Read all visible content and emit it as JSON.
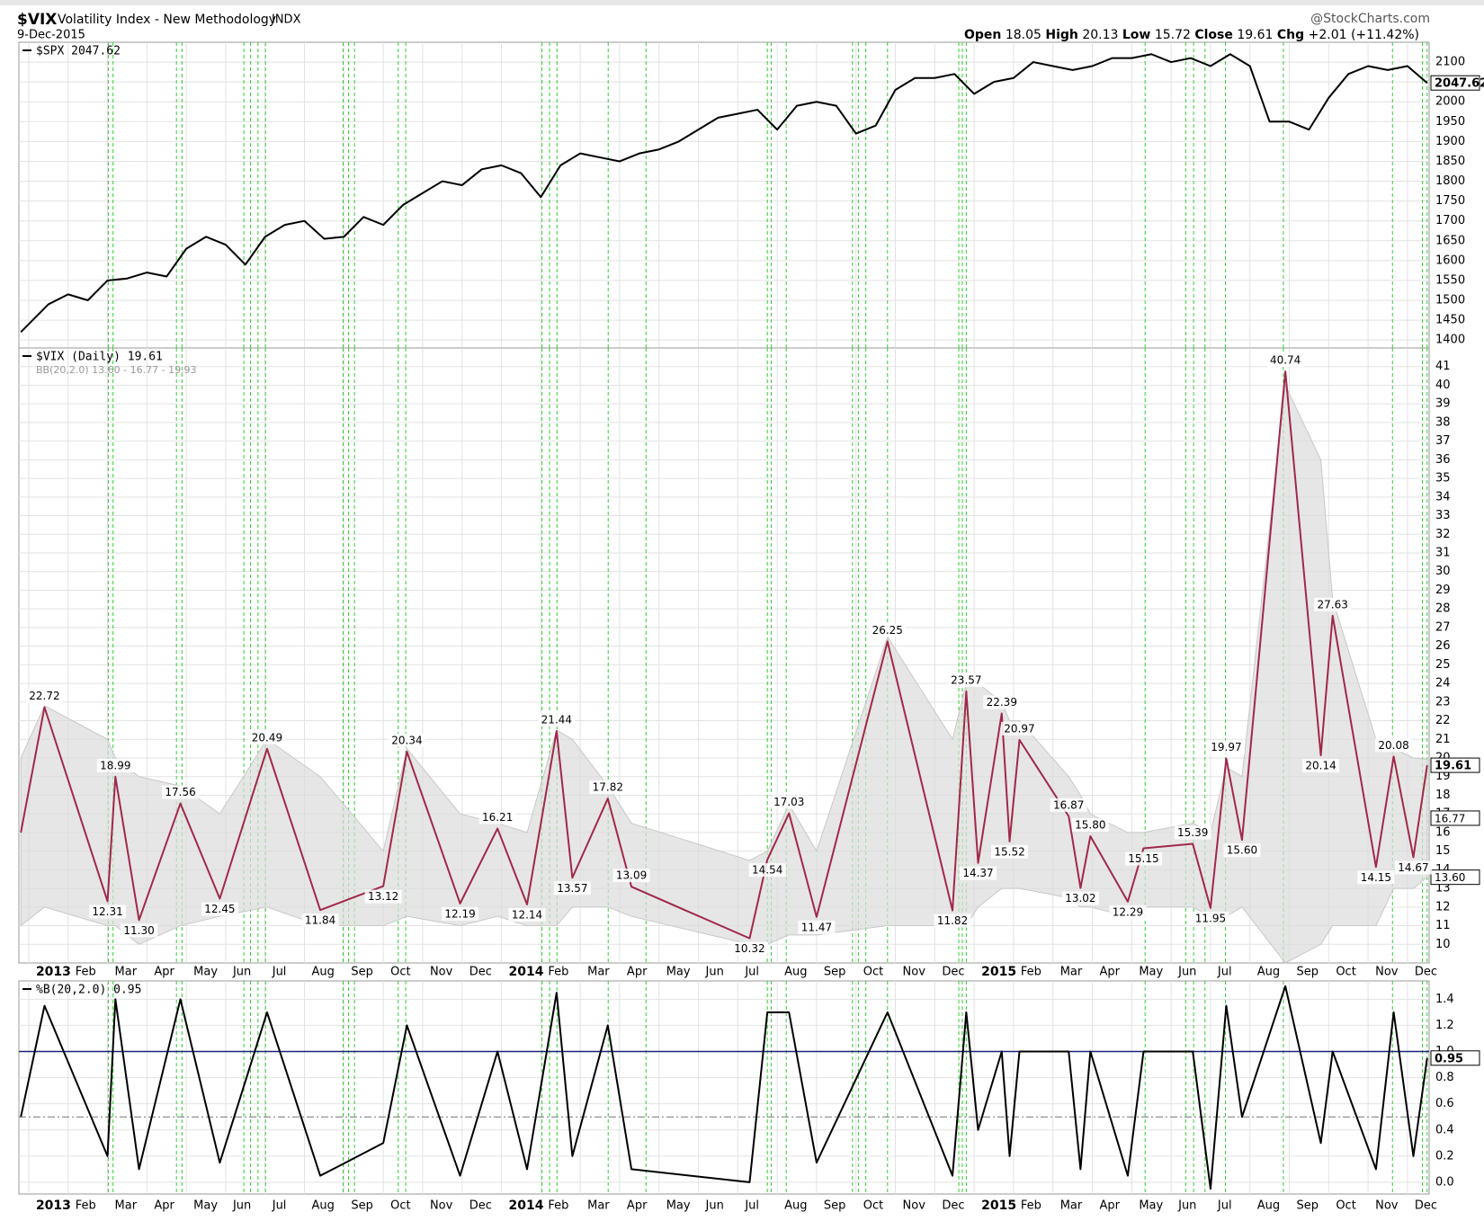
{
  "header": {
    "symbol": "$VIX",
    "name": "Volatility Index - New Methodology",
    "exchange": "INDX",
    "date": "9-Dec-2015",
    "source": "@StockCharts.com",
    "ohlc": [
      "Open",
      "18.05",
      "High",
      "20.13",
      "Low",
      "15.72",
      "Close",
      "19.61",
      "Chg",
      "+2.01 (+11.42%)"
    ]
  },
  "chart_data": [
    {
      "type": "line",
      "legend": "$SPX 2047.62",
      "color": "#000000",
      "xlim": [
        -0.25,
        35.55
      ],
      "x": [
        -0.2,
        0.5,
        1,
        1.5,
        2,
        2.5,
        3,
        3.5,
        4,
        4.5,
        5,
        5.5,
        6,
        6.5,
        7,
        7.5,
        8,
        8.5,
        9,
        9.5,
        10,
        10.5,
        11,
        11.5,
        12,
        12.5,
        13,
        13.5,
        14,
        14.5,
        15,
        15.5,
        16,
        16.5,
        17,
        17.5,
        18,
        18.5,
        19,
        19.5,
        20,
        20.5,
        21,
        21.5,
        22,
        22.5,
        23,
        23.5,
        24,
        24.5,
        25,
        25.5,
        26,
        26.5,
        27,
        27.5,
        28,
        28.5,
        29,
        29.5,
        30,
        30.5,
        31,
        31.5,
        32,
        32.5,
        33,
        33.5,
        34,
        34.5,
        35,
        35.5
      ],
      "values": [
        1420,
        1490,
        1515,
        1500,
        1550,
        1555,
        1570,
        1560,
        1630,
        1660,
        1640,
        1590,
        1660,
        1690,
        1700,
        1655,
        1660,
        1710,
        1690,
        1740,
        1770,
        1800,
        1790,
        1830,
        1840,
        1820,
        1760,
        1840,
        1870,
        1860,
        1850,
        1870,
        1880,
        1900,
        1930,
        1960,
        1970,
        1980,
        1930,
        1990,
        2000,
        1990,
        1920,
        1940,
        2030,
        2060,
        2060,
        2070,
        2020,
        2050,
        2060,
        2100,
        2090,
        2080,
        2090,
        2110,
        2110,
        2120,
        2100,
        2110,
        2090,
        2120,
        2090,
        1950,
        1950,
        1930,
        2010,
        2070,
        2090,
        2080,
        2090,
        2047.62
      ],
      "ylim": [
        1380,
        2150
      ],
      "yticks": [
        1400,
        1450,
        1500,
        1550,
        1600,
        1650,
        1700,
        1750,
        1800,
        1850,
        1900,
        1950,
        2000,
        2050,
        2100
      ],
      "grid": true
    },
    {
      "type": "line",
      "legend": "$VIX (Daily) 19.61",
      "band_legend": "BB(20,2.0) 13.60 - 16.77 - 19.93",
      "color": "#a0284a",
      "band_color": "#dcdcdc",
      "xlim": [
        -0.25,
        35.55
      ],
      "xticks": [
        {
          "value": 0,
          "label": "2013"
        },
        {
          "value": 1,
          "label": "Feb"
        },
        {
          "value": 2,
          "label": "Mar"
        },
        {
          "value": 3,
          "label": "Apr"
        },
        {
          "value": 4,
          "label": "May"
        },
        {
          "value": 5,
          "label": "Jun"
        },
        {
          "value": 6,
          "label": "Jul"
        },
        {
          "value": 7,
          "label": "Aug"
        },
        {
          "value": 8,
          "label": "Sep"
        },
        {
          "value": 9,
          "label": "Oct"
        },
        {
          "value": 10,
          "label": "Nov"
        },
        {
          "value": 11,
          "label": "Dec"
        },
        {
          "value": 12,
          "label": "2014"
        },
        {
          "value": 13,
          "label": "Feb"
        },
        {
          "value": 14,
          "label": "Mar"
        },
        {
          "value": 15,
          "label": "Apr"
        },
        {
          "value": 16,
          "label": "May"
        },
        {
          "value": 17,
          "label": "Jun"
        },
        {
          "value": 18,
          "label": "Jul"
        },
        {
          "value": 19,
          "label": "Aug"
        },
        {
          "value": 20,
          "label": "Sep"
        },
        {
          "value": 21,
          "label": "Oct"
        },
        {
          "value": 22,
          "label": "Nov"
        },
        {
          "value": 23,
          "label": "Dec"
        },
        {
          "value": 24,
          "label": "2015"
        },
        {
          "value": 25,
          "label": "Feb"
        },
        {
          "value": 26,
          "label": "Mar"
        },
        {
          "value": 27,
          "label": "Apr"
        },
        {
          "value": 28,
          "label": "May"
        },
        {
          "value": 29,
          "label": "Jun"
        },
        {
          "value": 30,
          "label": "Jul"
        },
        {
          "value": 31,
          "label": "Aug"
        },
        {
          "value": 32,
          "label": "Sep"
        },
        {
          "value": 33,
          "label": "Oct"
        },
        {
          "value": 34,
          "label": "Nov"
        },
        {
          "value": 35,
          "label": "Dec"
        }
      ],
      "x": [
        -0.2,
        0.4,
        2.0,
        2.2,
        2.8,
        3.85,
        4.85,
        6.05,
        7.4,
        9.0,
        9.6,
        10.95,
        11.9,
        12.65,
        13.4,
        13.8,
        14.7,
        15.3,
        18.3,
        18.75,
        19.3,
        20.0,
        21.8,
        23.45,
        23.8,
        24.1,
        24.7,
        24.9,
        25.15,
        26.4,
        26.7,
        26.95,
        27.9,
        28.3,
        29.55,
        30.0,
        30.4,
        30.8,
        31.9,
        32.8,
        33.1,
        34.2,
        34.65,
        35.15,
        35.5
      ],
      "values": [
        16,
        22.72,
        12.31,
        18.99,
        11.3,
        17.56,
        12.45,
        20.49,
        11.84,
        13.12,
        20.34,
        12.19,
        16.21,
        12.14,
        21.44,
        13.57,
        17.82,
        13.09,
        10.32,
        14.54,
        17.03,
        11.47,
        26.25,
        11.82,
        23.57,
        14.37,
        22.39,
        15.52,
        20.97,
        16.87,
        13.02,
        15.8,
        12.29,
        15.15,
        15.39,
        11.95,
        19.97,
        15.6,
        40.74,
        20.14,
        27.63,
        14.15,
        20.08,
        14.67,
        19.61
      ],
      "value_labels": [
        null,
        "22.72",
        "12.31",
        "18.99",
        "11.30",
        "17.56",
        "12.45",
        "20.49",
        "11.84",
        "13.12",
        "20.34",
        "12.19",
        "16.21",
        "12.14",
        "21.44",
        "13.57",
        "17.82",
        "13.09",
        "10.32",
        "14.54",
        "17.03",
        "11.47",
        "26.25",
        "11.82",
        "23.57",
        "14.37",
        "22.39",
        "15.52",
        "20.97",
        "16.87",
        "13.02",
        "15.80",
        "12.29",
        "15.15",
        "15.39",
        "11.95",
        "19.97",
        "15.60",
        "40.74",
        "20.14",
        "27.63",
        "14.15",
        "20.08",
        "14.67",
        "19.61"
      ],
      "upper": [
        20,
        22.8,
        21,
        20,
        19,
        18.5,
        17,
        21,
        19,
        15,
        20.5,
        17,
        16.5,
        16,
        21.5,
        21,
        18.5,
        16.5,
        14.5,
        15,
        17.5,
        15,
        26.5,
        21,
        24,
        24,
        23,
        22,
        22,
        19,
        18,
        17,
        16,
        16,
        16.5,
        16,
        19.5,
        19,
        40,
        36,
        28.5,
        21,
        20.5,
        20,
        19.93
      ],
      "lower": [
        11,
        12,
        11,
        11,
        10,
        11,
        11.5,
        12,
        11,
        11,
        11.5,
        11,
        11.5,
        11,
        11,
        12,
        12,
        11.5,
        10,
        10,
        10.5,
        10.5,
        11,
        11,
        11,
        12,
        13,
        13,
        13,
        12.5,
        12,
        12,
        11.5,
        12,
        12,
        11.5,
        11.5,
        12,
        9,
        10,
        11,
        11,
        13,
        13,
        13.6
      ],
      "axis_labels": [
        {
          "value": 16.77,
          "label": "16.77"
        },
        {
          "value": 13.6,
          "label": "13.60"
        }
      ],
      "ylim": [
        9,
        42
      ],
      "yticks": [
        10,
        11,
        12,
        13,
        14,
        15,
        16,
        17,
        18,
        19,
        20,
        21,
        22,
        23,
        24,
        25,
        26,
        27,
        28,
        29,
        30,
        31,
        32,
        33,
        34,
        35,
        36,
        37,
        38,
        39,
        40,
        41
      ],
      "grid": true
    },
    {
      "type": "line",
      "legend": "%B(20,2.0) 0.95",
      "color": "#000000",
      "xlim": [
        -0.25,
        35.55
      ],
      "xticks": [
        {
          "value": 0,
          "label": "2013"
        },
        {
          "value": 1,
          "label": "Feb"
        },
        {
          "value": 2,
          "label": "Mar"
        },
        {
          "value": 3,
          "label": "Apr"
        },
        {
          "value": 4,
          "label": "May"
        },
        {
          "value": 5,
          "label": "Jun"
        },
        {
          "value": 6,
          "label": "Jul"
        },
        {
          "value": 7,
          "label": "Aug"
        },
        {
          "value": 8,
          "label": "Sep"
        },
        {
          "value": 9,
          "label": "Oct"
        },
        {
          "value": 10,
          "label": "Nov"
        },
        {
          "value": 11,
          "label": "Dec"
        },
        {
          "value": 12,
          "label": "2014"
        },
        {
          "value": 13,
          "label": "Feb"
        },
        {
          "value": 14,
          "label": "Mar"
        },
        {
          "value": 15,
          "label": "Apr"
        },
        {
          "value": 16,
          "label": "May"
        },
        {
          "value": 17,
          "label": "Jun"
        },
        {
          "value": 18,
          "label": "Jul"
        },
        {
          "value": 19,
          "label": "Aug"
        },
        {
          "value": 20,
          "label": "Sep"
        },
        {
          "value": 21,
          "label": "Oct"
        },
        {
          "value": 22,
          "label": "Nov"
        },
        {
          "value": 23,
          "label": "Dec"
        },
        {
          "value": 24,
          "label": "2015"
        },
        {
          "value": 25,
          "label": "Feb"
        },
        {
          "value": 26,
          "label": "Mar"
        },
        {
          "value": 27,
          "label": "Apr"
        },
        {
          "value": 28,
          "label": "May"
        },
        {
          "value": 29,
          "label": "Jun"
        },
        {
          "value": 30,
          "label": "Jul"
        },
        {
          "value": 31,
          "label": "Aug"
        },
        {
          "value": 32,
          "label": "Sep"
        },
        {
          "value": 33,
          "label": "Oct"
        },
        {
          "value": 34,
          "label": "Nov"
        },
        {
          "value": 35,
          "label": "Dec"
        }
      ],
      "x": [
        -0.2,
        0.4,
        2.0,
        2.2,
        2.8,
        3.85,
        4.85,
        6.05,
        7.4,
        9.0,
        9.6,
        10.95,
        11.9,
        12.65,
        13.4,
        13.8,
        14.7,
        15.3,
        18.3,
        18.75,
        19.3,
        20.0,
        21.8,
        23.45,
        23.8,
        24.1,
        24.7,
        24.9,
        25.15,
        26.4,
        26.7,
        26.95,
        27.9,
        28.3,
        29.55,
        30.0,
        30.4,
        30.8,
        31.9,
        32.8,
        33.1,
        34.2,
        34.65,
        35.15,
        35.5
      ],
      "values": [
        0.5,
        1.35,
        0.2,
        1.4,
        0.1,
        1.4,
        0.15,
        1.3,
        0.05,
        0.3,
        1.2,
        0.05,
        1.0,
        0.1,
        1.45,
        0.2,
        1.2,
        0.1,
        0.0,
        1.3,
        1.3,
        0.15,
        1.3,
        0.05,
        1.3,
        0.4,
        1.0,
        0.2,
        1.0,
        1.0,
        0.1,
        1.0,
        0.05,
        1.0,
        1.0,
        -0.05,
        1.35,
        0.5,
        1.5,
        0.3,
        1.0,
        0.1,
        1.3,
        0.2,
        0.95
      ],
      "reference_lines": [
        1,
        0.5
      ],
      "ylim": [
        -0.09,
        1.54
      ],
      "yticks": [
        {
          "value": 0,
          "label": "0.0"
        },
        0.2,
        0.4,
        0.6,
        0.8,
        {
          "value": 1,
          "label": "1.0"
        },
        1.2,
        1.4
      ],
      "grid": true
    }
  ]
}
